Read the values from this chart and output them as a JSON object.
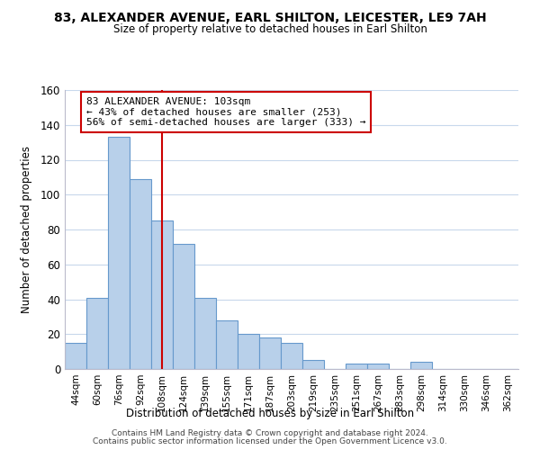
{
  "title": "83, ALEXANDER AVENUE, EARL SHILTON, LEICESTER, LE9 7AH",
  "subtitle": "Size of property relative to detached houses in Earl Shilton",
  "xlabel": "Distribution of detached houses by size in Earl Shilton",
  "ylabel": "Number of detached properties",
  "bar_labels": [
    "44sqm",
    "60sqm",
    "76sqm",
    "92sqm",
    "108sqm",
    "124sqm",
    "139sqm",
    "155sqm",
    "171sqm",
    "187sqm",
    "203sqm",
    "219sqm",
    "235sqm",
    "251sqm",
    "267sqm",
    "283sqm",
    "298sqm",
    "314sqm",
    "330sqm",
    "346sqm",
    "362sqm"
  ],
  "bar_values": [
    15,
    41,
    133,
    109,
    85,
    72,
    41,
    28,
    20,
    18,
    15,
    5,
    0,
    3,
    3,
    0,
    4,
    0,
    0,
    0,
    0
  ],
  "bar_color": "#b8d0ea",
  "bar_edge_color": "#6699cc",
  "annotation_title": "83 ALEXANDER AVENUE: 103sqm",
  "annotation_line1": "← 43% of detached houses are smaller (253)",
  "annotation_line2": "56% of semi-detached houses are larger (333) →",
  "vline_color": "#cc0000",
  "vline_x_index": 4,
  "ylim": [
    0,
    160
  ],
  "yticks": [
    0,
    20,
    40,
    60,
    80,
    100,
    120,
    140,
    160
  ],
  "footer_line1": "Contains HM Land Registry data © Crown copyright and database right 2024.",
  "footer_line2": "Contains public sector information licensed under the Open Government Licence v3.0.",
  "background_color": "#ffffff",
  "grid_color": "#c8d8ec"
}
